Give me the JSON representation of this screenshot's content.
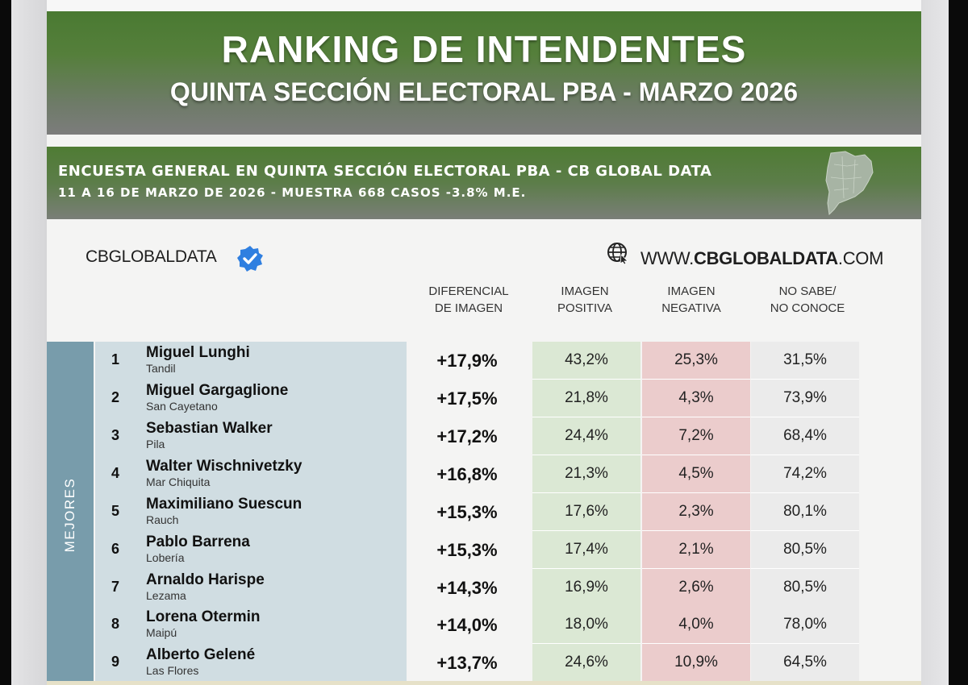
{
  "header": {
    "title": "RANKING DE INTENDENTES",
    "subtitle": "QUINTA SECCIÓN ELECTORAL PBA - MARZO 2026"
  },
  "survey": {
    "line1": "ENCUESTA GENERAL EN QUINTA SECCIÓN ELECTORAL PBA - CB GLOBAL DATA",
    "line2": "11 A 16 DE MARZO  DE 2026 - MUESTRA 668  CASOS -3.8% M.E."
  },
  "brand": {
    "name": "CBGLOBALDATA",
    "url_prefix": "WWW.",
    "url_bold": "CBGLOBALDATA",
    "url_suffix": ".COM"
  },
  "columns": {
    "diff_l1": "DIFERENCIAL",
    "diff_l2": "DE IMAGEN",
    "pos_l1": "IMAGEN",
    "pos_l2": "POSITIVA",
    "neg_l1": "IMAGEN",
    "neg_l2": "NEGATIVA",
    "ns_l1": "NO SABE/",
    "ns_l2": "NO CONOCE"
  },
  "section_label": "MEJORES",
  "colors": {
    "header_green": "#4a7a32",
    "section_blue": "#789cab",
    "name_bg": "#d0dde2",
    "positive_bg": "#dbe8d4",
    "negative_bg": "#ebcccc",
    "neutral_bg": "#ebebeb"
  },
  "rows": [
    {
      "rank": "1",
      "name": "Miguel Lunghi",
      "city": "Tandil",
      "diff": "+17,9%",
      "pos": "43,2%",
      "neg": "25,3%",
      "ns": "31,5%"
    },
    {
      "rank": "2",
      "name": "Miguel Gargaglione",
      "city": "San Cayetano",
      "diff": "+17,5%",
      "pos": "21,8%",
      "neg": "4,3%",
      "ns": "73,9%"
    },
    {
      "rank": "3",
      "name": "Sebastian Walker",
      "city": "Pila",
      "diff": "+17,2%",
      "pos": "24,4%",
      "neg": "7,2%",
      "ns": "68,4%"
    },
    {
      "rank": "4",
      "name": "Walter Wischnivetzky",
      "city": "Mar Chiquita",
      "diff": "+16,8%",
      "pos": "21,3%",
      "neg": "4,5%",
      "ns": "74,2%"
    },
    {
      "rank": "5",
      "name": "Maximiliano Suescun",
      "city": "Rauch",
      "diff": "+15,3%",
      "pos": "17,6%",
      "neg": "2,3%",
      "ns": "80,1%"
    },
    {
      "rank": "6",
      "name": "Pablo Barrena",
      "city": "Lobería",
      "diff": "+15,3%",
      "pos": "17,4%",
      "neg": "2,1%",
      "ns": "80,5%"
    },
    {
      "rank": "7",
      "name": "Arnaldo Harispe",
      "city": "Lezama",
      "diff": "+14,3%",
      "pos": "16,9%",
      "neg": "2,6%",
      "ns": "80,5%"
    },
    {
      "rank": "8",
      "name": "Lorena Otermin",
      "city": "Maipú",
      "diff": "+14,0%",
      "pos": "18,0%",
      "neg": "4,0%",
      "ns": "78,0%"
    },
    {
      "rank": "9",
      "name": "Alberto Gelené",
      "city": "Las Flores",
      "diff": "+13,7%",
      "pos": "24,6%",
      "neg": "10,9%",
      "ns": "64,5%"
    }
  ]
}
